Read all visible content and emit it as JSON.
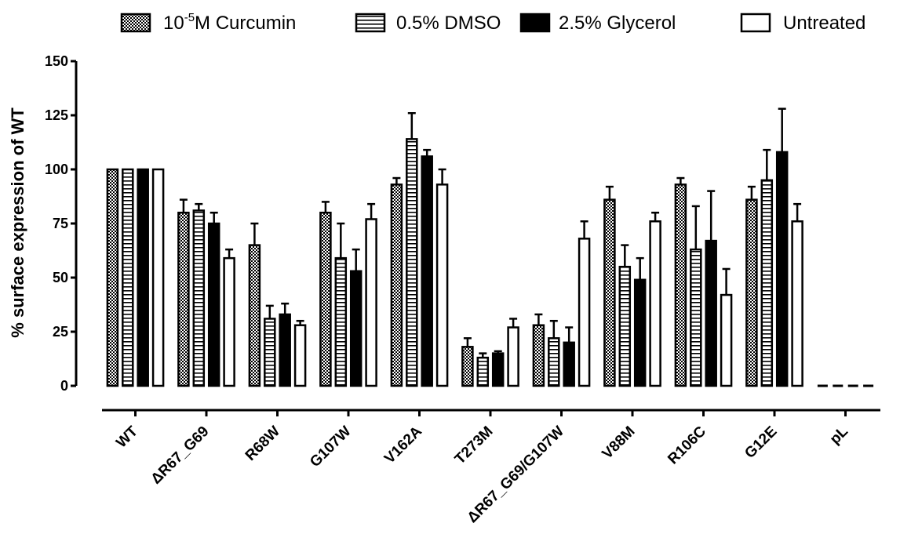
{
  "chart_data": {
    "type": "bar",
    "ylabel": "% surface expression of WT",
    "ylim": [
      0,
      150
    ],
    "yticks": [
      "0",
      "25",
      "50",
      "75",
      "100",
      "125",
      "150"
    ],
    "grid": false,
    "legend_position": "top",
    "categories": [
      "WT",
      "ΔR67_G69",
      "R68W",
      "G107W",
      "V162A",
      "T273M",
      "ΔR67_G69/G107W",
      "V88M",
      "R106C",
      "G12E",
      "pL"
    ],
    "series": [
      {
        "name": "10⁻⁵M Curcumin",
        "legend_main": "10",
        "legend_sup": "-5",
        "legend_rest": "M Curcumin",
        "pattern": "checker",
        "values": [
          100,
          80,
          65,
          80,
          93,
          18,
          28,
          86,
          93,
          86,
          0
        ],
        "errors": [
          0,
          6,
          10,
          5,
          3,
          4,
          5,
          6,
          3,
          6,
          0
        ]
      },
      {
        "name": "0.5% DMSO",
        "pattern": "hlines",
        "values": [
          100,
          81,
          31,
          59,
          114,
          13,
          22,
          55,
          63,
          95,
          0
        ],
        "errors": [
          0,
          3,
          6,
          16,
          12,
          2,
          8,
          10,
          20,
          14,
          0
        ]
      },
      {
        "name": "2.5% Glycerol",
        "pattern": "solid",
        "values": [
          100,
          75,
          33,
          53,
          106,
          15,
          20,
          49,
          67,
          108,
          0
        ],
        "errors": [
          0,
          5,
          5,
          10,
          3,
          1,
          7,
          10,
          23,
          20,
          0
        ]
      },
      {
        "name": "Untreated",
        "pattern": "open",
        "values": [
          100,
          59,
          28,
          77,
          93,
          27,
          68,
          76,
          42,
          76,
          0
        ],
        "errors": [
          0,
          4,
          2,
          7,
          7,
          4,
          8,
          4,
          12,
          8,
          0
        ]
      }
    ]
  }
}
